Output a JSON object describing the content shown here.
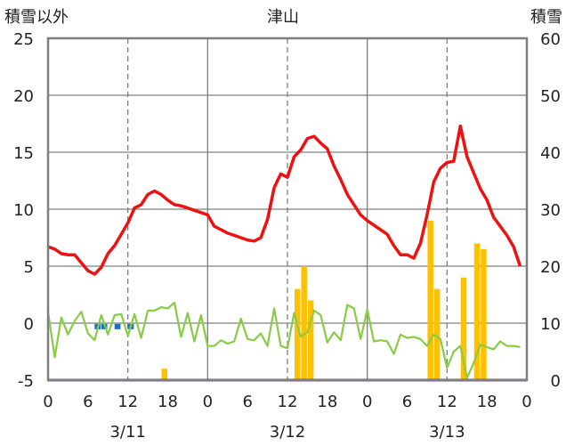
{
  "chart_data": {
    "type": "line",
    "title": "津山",
    "left_axis_title": "積雪以外",
    "right_axis_title": "積雪",
    "left_ylim": [
      -5,
      25
    ],
    "left_ticks": [
      "25",
      "20",
      "15",
      "10",
      "5",
      "0",
      "-5"
    ],
    "right_ylim": [
      0,
      60
    ],
    "right_ticks": [
      "60",
      "50",
      "40",
      "30",
      "20",
      "10",
      "0"
    ],
    "xlim": [
      0,
      72
    ],
    "x_ticks": [
      "0",
      "6",
      "12",
      "18",
      "0",
      "6",
      "12",
      "18",
      "0",
      "6",
      "12",
      "18",
      "0"
    ],
    "day_labels": [
      "3/11",
      "3/12",
      "3/13"
    ],
    "grid": true,
    "colors": {
      "red": "#ee1111",
      "green": "#88cc44",
      "orange": "#ffc000",
      "blue": "#1f6fbf",
      "purple": "#7030a0",
      "frame": "#7f7f7f"
    },
    "series": [
      {
        "axis": "left",
        "style": "line",
        "color": "red",
        "values": [
          6.7,
          6.5,
          6.1,
          6.0,
          6.0,
          5.3,
          4.6,
          4.3,
          4.9,
          6.1,
          6.8,
          7.8,
          8.8,
          10.1,
          10.4,
          11.3,
          11.6,
          11.3,
          10.8,
          10.4,
          10.3,
          10.1,
          9.9,
          9.7,
          9.5,
          8.5,
          8.2,
          7.9,
          7.7,
          7.5,
          7.3,
          7.2,
          7.5,
          9.1,
          11.9,
          13.1,
          12.8,
          14.6,
          15.2,
          16.2,
          16.4,
          15.8,
          15.3,
          13.8,
          12.6,
          11.3,
          10.4,
          9.5,
          9.0,
          8.6,
          8.2,
          7.8,
          6.8,
          6.0,
          6.0,
          5.7,
          7.0,
          9.5,
          12.4,
          13.6,
          14.1,
          14.2,
          17.3,
          14.6,
          13.2,
          11.8,
          10.8,
          9.3,
          8.5,
          7.7,
          6.7,
          5.0
        ]
      },
      {
        "axis": "left",
        "style": "line",
        "color": "green",
        "values": [
          1.0,
          -3.0,
          0.5,
          -1.0,
          0.2,
          1.0,
          -0.9,
          -1.5,
          0.7,
          -1.0,
          0.7,
          0.8,
          -1.1,
          0.8,
          -1.3,
          1.1,
          1.1,
          1.4,
          1.3,
          1.8,
          -1.2,
          0.9,
          -1.6,
          0.7,
          -2.0,
          -2.0,
          -1.5,
          -1.8,
          -1.6,
          0.4,
          -1.4,
          -1.5,
          -0.9,
          -2.0,
          1.3,
          -2.0,
          -2.2,
          0.9,
          -1.2,
          -0.8,
          1.1,
          0.7,
          -1.7,
          -0.8,
          -1.5,
          1.6,
          1.3,
          -1.4,
          1.2,
          -1.6,
          -1.5,
          -1.6,
          -2.7,
          -1.0,
          -1.3,
          -1.2,
          -1.4,
          -2.0,
          -1.0,
          -1.4,
          -3.9,
          -2.5,
          -2.0,
          -4.8,
          -3.5,
          -1.9,
          -2.1,
          -2.3,
          -1.6,
          -2.0,
          -2.0,
          -2.1
        ]
      },
      {
        "axis": "right",
        "style": "bar",
        "color": "orange",
        "values": [
          0,
          0,
          0,
          0,
          0,
          0,
          0,
          0,
          0,
          0,
          0,
          0,
          0,
          0,
          0,
          0,
          0,
          2,
          0,
          0,
          0,
          0,
          0,
          0,
          0,
          0,
          0,
          0,
          0,
          0,
          0,
          0,
          0,
          0,
          0,
          0,
          0,
          16,
          20,
          14,
          0,
          0,
          0,
          0,
          0,
          0,
          0,
          0,
          0,
          0,
          0,
          0,
          0,
          0,
          0,
          0,
          0,
          28,
          16,
          0,
          0,
          0,
          18,
          0,
          24,
          23,
          0,
          0,
          0,
          0,
          0,
          0
        ]
      },
      {
        "axis": "left",
        "style": "dashes",
        "color": "blue",
        "values": [
          null,
          null,
          null,
          null,
          null,
          null,
          null,
          -0.3,
          -0.3,
          null,
          -0.3,
          null,
          -0.3,
          null,
          null,
          null,
          null,
          null,
          null,
          null,
          null,
          null,
          null,
          null,
          null,
          null,
          null,
          null,
          null,
          null,
          null,
          null,
          null,
          null,
          null,
          null,
          null,
          null,
          null,
          null,
          null,
          null,
          null,
          null,
          null,
          null,
          null,
          null,
          null,
          null,
          null,
          null,
          null,
          null,
          null,
          null,
          null,
          null,
          null,
          null,
          null,
          null,
          null,
          null,
          null,
          null,
          null,
          null,
          null,
          null,
          null,
          null
        ]
      },
      {
        "axis": "right",
        "style": "line",
        "color": "purple",
        "values": [
          0,
          0
        ]
      }
    ]
  }
}
